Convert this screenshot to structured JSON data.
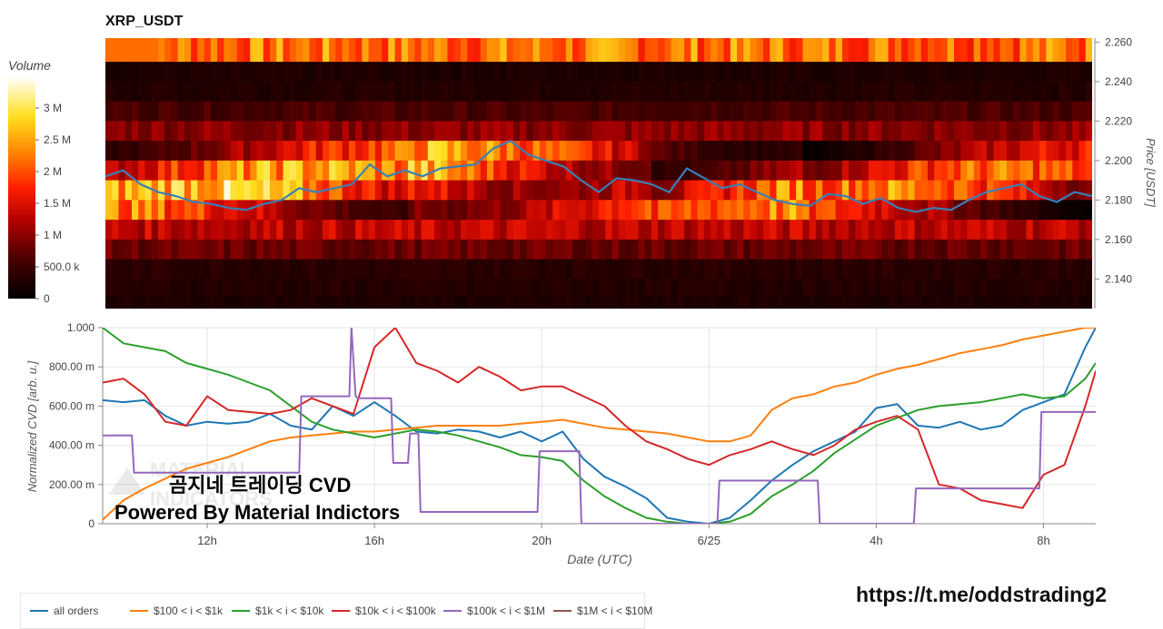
{
  "title": "XRP_USDT",
  "colorbar": {
    "title": "Volume",
    "ticks": [
      {
        "label": "3 M",
        "value": 3000000
      },
      {
        "label": "2.5 M",
        "value": 2500000
      },
      {
        "label": "2 M",
        "value": 2000000
      },
      {
        "label": "1.5 M",
        "value": 1500000
      },
      {
        "label": "1 M",
        "value": 1000000
      },
      {
        "label": "500.0 k",
        "value": 500000
      },
      {
        "label": "0",
        "value": 0
      }
    ],
    "max": 3500000
  },
  "overlay_text": {
    "line1": "곰지네 트레이딩 CVD",
    "line2": "Powered By Material Indictors"
  },
  "footer_url": "https://t.me/oddstrading2",
  "chart_data": [
    {
      "type": "heatmap",
      "title": "XRP_USDT",
      "ylabel": "Price [USDT]",
      "ylim": [
        2.125,
        2.262
      ],
      "y_ticks": [
        "2.260",
        "2.240",
        "2.220",
        "2.200",
        "2.180",
        "2.160",
        "2.140"
      ],
      "price_bins": [
        2.255,
        2.245,
        2.235,
        2.225,
        2.215,
        2.205,
        2.195,
        2.185,
        2.175,
        2.165,
        2.155,
        2.145,
        2.135,
        2.128
      ],
      "bin_base_volume_m": [
        2.2,
        0.25,
        0.3,
        0.6,
        1.0,
        1.7,
        2.1,
        2.3,
        1.9,
        1.3,
        0.8,
        0.35,
        0.3,
        0.25
      ],
      "price_series": {
        "name": "price",
        "x_hours": [
          9.5,
          10,
          10.5,
          11,
          11.5,
          12,
          12.5,
          13,
          13.5,
          14,
          14.5,
          15,
          15.5,
          16,
          16.5,
          17,
          17.5,
          18,
          18.5,
          19,
          19.5,
          20,
          20.5,
          21,
          21.5,
          22,
          22.5,
          23,
          23.5,
          24,
          24.5,
          25,
          25.5,
          26,
          26.5,
          27,
          27.5,
          28,
          28.5,
          29,
          29.5,
          30,
          30.5,
          31,
          31.5,
          32,
          32.5,
          33,
          33.5,
          34,
          34.5,
          35,
          35.5,
          36,
          36.5,
          37,
          37.5
        ],
        "values": [
          2.192,
          2.195,
          2.188,
          2.184,
          2.182,
          2.179,
          2.178,
          2.176,
          2.175,
          2.178,
          2.18,
          2.186,
          2.184,
          2.186,
          2.188,
          2.198,
          2.192,
          2.195,
          2.192,
          2.196,
          2.197,
          2.198,
          2.206,
          2.21,
          2.203,
          2.2,
          2.197,
          2.19,
          2.184,
          2.191,
          2.19,
          2.188,
          2.184,
          2.196,
          2.191,
          2.186,
          2.188,
          2.184,
          2.18,
          2.178,
          2.177,
          2.183,
          2.182,
          2.178,
          2.181,
          2.176,
          2.174,
          2.176,
          2.175,
          2.18,
          2.184,
          2.186,
          2.188,
          2.182,
          2.179,
          2.184,
          2.182
        ]
      }
    },
    {
      "type": "line",
      "xlabel": "Date (UTC)",
      "ylabel": "Normalized CVD [arb. u.]",
      "ylim": [
        0,
        1.0
      ],
      "xlim_hours": [
        9.5,
        33.25
      ],
      "x_ticks": [
        {
          "label": "12h",
          "hour": 12
        },
        {
          "label": "16h",
          "hour": 16
        },
        {
          "label": "20h",
          "hour": 20
        },
        {
          "label": "6/25",
          "hour": 24
        },
        {
          "label": "4h",
          "hour": 28
        },
        {
          "label": "8h",
          "hour": 32
        }
      ],
      "y_ticks": [
        "1.000",
        "800.00 m",
        "600.00 m",
        "400.00 m",
        "200.00 m",
        "0"
      ],
      "series": [
        {
          "name": "all orders",
          "color": "#1f77b4",
          "x": [
            9.5,
            10,
            10.5,
            11,
            11.5,
            12,
            12.5,
            13,
            13.5,
            14,
            14.5,
            15,
            15.5,
            16,
            16.5,
            17,
            17.5,
            18,
            18.5,
            19,
            19.5,
            20,
            20.5,
            21,
            21.5,
            22,
            22.5,
            23,
            23.5,
            24,
            24.5,
            25,
            25.5,
            26,
            26.5,
            27,
            27.5,
            28,
            28.5,
            29,
            29.5,
            30,
            30.5,
            31,
            31.5,
            32,
            32.5,
            33,
            33.25
          ],
          "values": [
            0.63,
            0.62,
            0.63,
            0.55,
            0.5,
            0.52,
            0.51,
            0.52,
            0.56,
            0.5,
            0.48,
            0.6,
            0.55,
            0.62,
            0.55,
            0.47,
            0.46,
            0.48,
            0.47,
            0.44,
            0.47,
            0.42,
            0.47,
            0.33,
            0.24,
            0.19,
            0.13,
            0.03,
            0.01,
            0.0,
            0.03,
            0.12,
            0.22,
            0.3,
            0.37,
            0.42,
            0.47,
            0.59,
            0.61,
            0.5,
            0.49,
            0.52,
            0.48,
            0.5,
            0.58,
            0.62,
            0.66,
            0.9,
            1.0
          ]
        },
        {
          "name": "$100 < i < $1k",
          "color": "#ff7f0e",
          "x": [
            9.5,
            10,
            10.5,
            11,
            11.5,
            12,
            12.5,
            13,
            13.5,
            14,
            14.5,
            15,
            15.5,
            16,
            16.5,
            17,
            17.5,
            18,
            18.5,
            19,
            19.5,
            20,
            20.5,
            21,
            21.5,
            22,
            22.5,
            23,
            23.5,
            24,
            24.5,
            25,
            25.5,
            26,
            26.5,
            27,
            27.5,
            28,
            28.5,
            29,
            29.5,
            30,
            30.5,
            31,
            31.5,
            32,
            32.5,
            33,
            33.25
          ],
          "values": [
            0.02,
            0.12,
            0.18,
            0.23,
            0.28,
            0.31,
            0.34,
            0.38,
            0.42,
            0.44,
            0.45,
            0.46,
            0.47,
            0.47,
            0.48,
            0.49,
            0.5,
            0.5,
            0.5,
            0.5,
            0.51,
            0.52,
            0.53,
            0.51,
            0.49,
            0.48,
            0.47,
            0.46,
            0.44,
            0.42,
            0.42,
            0.45,
            0.58,
            0.64,
            0.66,
            0.7,
            0.72,
            0.76,
            0.79,
            0.81,
            0.84,
            0.87,
            0.89,
            0.91,
            0.94,
            0.96,
            0.98,
            1.0,
            1.0
          ]
        },
        {
          "name": "$1k < i < $10k",
          "color": "#2ca02c",
          "x": [
            9.5,
            10,
            10.5,
            11,
            11.5,
            12,
            12.5,
            13,
            13.5,
            14,
            14.5,
            15,
            15.5,
            16,
            16.5,
            17,
            17.5,
            18,
            18.5,
            19,
            19.5,
            20,
            20.5,
            21,
            21.5,
            22,
            22.5,
            23,
            23.5,
            24,
            24.5,
            25,
            25.5,
            26,
            26.5,
            27,
            27.5,
            28,
            28.5,
            29,
            29.5,
            30,
            30.5,
            31,
            31.5,
            32,
            32.5,
            33,
            33.25
          ],
          "values": [
            1.0,
            0.92,
            0.9,
            0.88,
            0.82,
            0.79,
            0.76,
            0.72,
            0.68,
            0.6,
            0.52,
            0.48,
            0.46,
            0.44,
            0.46,
            0.48,
            0.47,
            0.45,
            0.42,
            0.39,
            0.35,
            0.34,
            0.32,
            0.22,
            0.14,
            0.08,
            0.03,
            0.01,
            0.0,
            0.0,
            0.01,
            0.05,
            0.14,
            0.2,
            0.27,
            0.36,
            0.43,
            0.5,
            0.54,
            0.58,
            0.6,
            0.61,
            0.62,
            0.64,
            0.66,
            0.64,
            0.65,
            0.74,
            0.82
          ]
        },
        {
          "name": "$10k < i < $100k",
          "color": "#d62728",
          "x": [
            9.5,
            10,
            10.5,
            11,
            11.5,
            12,
            12.5,
            13,
            13.5,
            14,
            14.5,
            15,
            15.5,
            16,
            16.5,
            17,
            17.5,
            18,
            18.5,
            19,
            19.5,
            20,
            20.5,
            21,
            21.5,
            22,
            22.5,
            23,
            23.5,
            24,
            24.5,
            25,
            25.5,
            26,
            26.5,
            27,
            27.5,
            28,
            28.5,
            29,
            29.5,
            30,
            30.5,
            31,
            31.5,
            32,
            32.5,
            33,
            33.25
          ],
          "values": [
            0.72,
            0.74,
            0.66,
            0.52,
            0.5,
            0.65,
            0.58,
            0.57,
            0.56,
            0.58,
            0.64,
            0.6,
            0.56,
            0.9,
            1.0,
            0.82,
            0.78,
            0.72,
            0.8,
            0.75,
            0.68,
            0.7,
            0.7,
            0.65,
            0.6,
            0.5,
            0.42,
            0.38,
            0.33,
            0.3,
            0.35,
            0.38,
            0.42,
            0.38,
            0.35,
            0.4,
            0.48,
            0.52,
            0.55,
            0.48,
            0.2,
            0.18,
            0.12,
            0.1,
            0.08,
            0.25,
            0.3,
            0.6,
            0.78
          ]
        },
        {
          "name": "$100k < i < $1M",
          "color": "#9467bd",
          "x": [
            9.5,
            10.2,
            10.25,
            14.2,
            14.25,
            15.4,
            15.45,
            15.55,
            15.6,
            16.4,
            16.45,
            16.8,
            16.85,
            17.05,
            17.1,
            19.9,
            19.95,
            20.9,
            20.95,
            24.2,
            24.25,
            26.6,
            26.65,
            28.9,
            28.95,
            31.9,
            31.95,
            33.25
          ],
          "values": [
            0.45,
            0.45,
            0.26,
            0.26,
            0.65,
            0.65,
            1.0,
            0.65,
            0.64,
            0.64,
            0.31,
            0.31,
            0.46,
            0.46,
            0.06,
            0.06,
            0.37,
            0.37,
            0.0,
            0.0,
            0.22,
            0.22,
            0.0,
            0.0,
            0.18,
            0.18,
            0.57,
            0.57
          ]
        },
        {
          "name": "$1M < i < $10M",
          "color": "#8c564b",
          "x": [],
          "values": []
        }
      ]
    }
  ]
}
